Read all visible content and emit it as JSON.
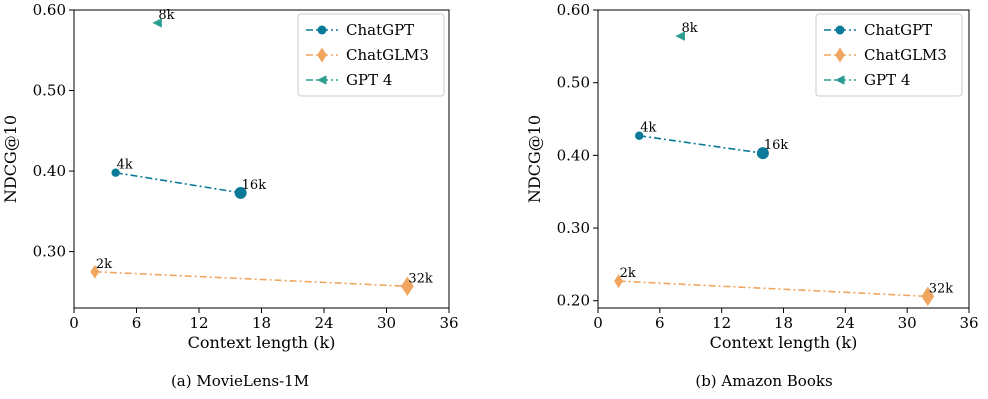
{
  "chart_data": [
    {
      "type": "line",
      "caption": "(a)  MovieLens-1M",
      "xlabel": "Context length (k)",
      "ylabel": "NDCG@10",
      "xlim": [
        0,
        36
      ],
      "ylim": [
        0.23,
        0.6
      ],
      "xticks": [
        0,
        6,
        12,
        18,
        24,
        30,
        36
      ],
      "xtick_labels": [
        "0",
        "6",
        "12",
        "18",
        "24",
        "30",
        "36"
      ],
      "yticks": [
        0.3,
        0.4,
        0.5,
        0.6
      ],
      "ytick_labels": [
        "0.30",
        "0.40",
        "0.50",
        "0.60"
      ],
      "grid": false,
      "legend": "top-right",
      "series": [
        {
          "name": "ChatGPT",
          "color": "#0b7a99",
          "marker": "circle",
          "points": [
            {
              "x": 4,
              "y": 0.398,
              "label": "4k"
            },
            {
              "x": 16,
              "y": 0.373,
              "label": "16k"
            }
          ]
        },
        {
          "name": "ChatGLM3",
          "color": "#f0a660",
          "marker": "diamond",
          "points": [
            {
              "x": 2,
              "y": 0.275,
              "label": "2k"
            },
            {
              "x": 32,
              "y": 0.257,
              "label": "32k"
            }
          ]
        },
        {
          "name": "GPT 4",
          "color": "#2a9d8f",
          "marker": "triangle-left",
          "points": [
            {
              "x": 8,
              "y": 0.584,
              "label": "8k"
            }
          ]
        }
      ]
    },
    {
      "type": "line",
      "caption": "(b)  Amazon Books",
      "xlabel": "Context length (k)",
      "ylabel": "NDCG@10",
      "xlim": [
        0,
        36
      ],
      "ylim": [
        0.19,
        0.6
      ],
      "xticks": [
        0,
        6,
        12,
        18,
        24,
        30,
        36
      ],
      "xtick_labels": [
        "0",
        "6",
        "12",
        "18",
        "24",
        "30",
        "36"
      ],
      "yticks": [
        0.2,
        0.3,
        0.4,
        0.5,
        0.6
      ],
      "ytick_labels": [
        "0.20",
        "0.30",
        "0.40",
        "0.50",
        "0.60"
      ],
      "grid": false,
      "legend": "top-right",
      "series": [
        {
          "name": "ChatGPT",
          "color": "#0b7a99",
          "marker": "circle",
          "points": [
            {
              "x": 4,
              "y": 0.427,
              "label": "4k"
            },
            {
              "x": 16,
              "y": 0.403,
              "label": "16k"
            }
          ]
        },
        {
          "name": "ChatGLM3",
          "color": "#f0a660",
          "marker": "diamond",
          "points": [
            {
              "x": 2,
              "y": 0.227,
              "label": "2k"
            },
            {
              "x": 32,
              "y": 0.206,
              "label": "32k"
            }
          ]
        },
        {
          "name": "GPT 4",
          "color": "#2a9d8f",
          "marker": "triangle-left",
          "points": [
            {
              "x": 8,
              "y": 0.564,
              "label": "8k"
            }
          ]
        }
      ]
    }
  ]
}
